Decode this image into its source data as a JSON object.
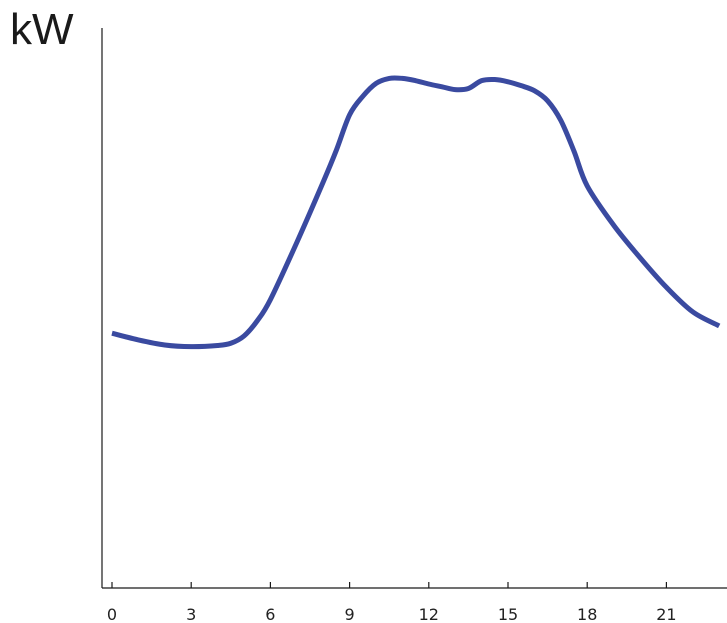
{
  "chart_data": {
    "type": "line",
    "title": "",
    "xlabel": "",
    "ylabel": "kW",
    "x_ticks": [
      0,
      3,
      6,
      9,
      12,
      15,
      18,
      21
    ],
    "xlim": [
      0,
      24
    ],
    "ylim": [
      0,
      100
    ],
    "grid": false,
    "legend": "none",
    "series": [
      {
        "color": "#3a4aa0",
        "x": [
          0,
          1,
          2,
          3,
          4,
          4.5,
          5,
          5.5,
          6,
          7,
          8,
          8.5,
          9,
          9.5,
          10,
          10.5,
          11,
          11.5,
          12,
          12.5,
          13,
          13.5,
          14,
          14.5,
          15,
          15.5,
          16,
          16.5,
          17,
          17.5,
          18,
          19,
          20,
          21,
          22,
          23
        ],
        "y": [
          45.5,
          44.3,
          43.4,
          43.1,
          43.3,
          43.7,
          45.0,
          47.7,
          51.5,
          61.7,
          72.5,
          78.2,
          84.5,
          87.8,
          90.1,
          91.0,
          91.0,
          90.6,
          90.0,
          89.5,
          89.0,
          89.2,
          90.6,
          90.8,
          90.4,
          89.7,
          88.8,
          87.0,
          83.5,
          78.0,
          71.8,
          64.8,
          59.0,
          53.7,
          49.3,
          46.8
        ]
      }
    ]
  }
}
